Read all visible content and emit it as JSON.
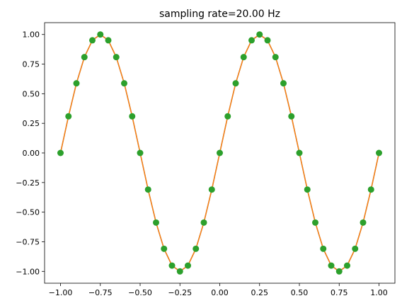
{
  "chart_data": {
    "type": "line",
    "title": "sampling rate=20.00 Hz",
    "xlabel": "",
    "ylabel": "",
    "xlim": [
      -1.1,
      1.1
    ],
    "ylim": [
      -1.1,
      1.1
    ],
    "x_ticks": [
      -1.0,
      -0.75,
      -0.5,
      -0.25,
      0.0,
      0.25,
      0.5,
      0.75,
      1.0
    ],
    "x_tick_labels": [
      "−1.00",
      "−0.75",
      "−0.50",
      "−0.25",
      "0.00",
      "0.25",
      "0.50",
      "0.75",
      "1.00"
    ],
    "y_ticks": [
      -1.0,
      -0.75,
      -0.5,
      -0.25,
      0.0,
      0.25,
      0.5,
      0.75,
      1.0
    ],
    "y_tick_labels": [
      "−1.00",
      "−0.75",
      "−0.50",
      "−0.25",
      "0.00",
      "0.25",
      "0.50",
      "0.75",
      "1.00"
    ],
    "grid": false,
    "series": [
      {
        "style": "line",
        "color": "#1f77b4",
        "x": [
          -1.0,
          -0.95,
          -0.9,
          -0.85,
          -0.8,
          -0.75,
          -0.7,
          -0.65,
          -0.6,
          -0.55,
          -0.5,
          -0.45,
          -0.4,
          -0.35,
          -0.3,
          -0.25,
          -0.2,
          -0.15,
          -0.1,
          -0.05,
          0.0,
          0.05,
          0.1,
          0.15,
          0.2,
          0.25,
          0.3,
          0.35,
          0.4,
          0.45,
          0.5,
          0.55,
          0.6,
          0.65,
          0.7,
          0.75,
          0.8,
          0.85,
          0.9,
          0.95,
          1.0
        ],
        "y": [
          0.0,
          0.309,
          0.588,
          0.809,
          0.951,
          1.0,
          0.951,
          0.809,
          0.588,
          0.309,
          0.0,
          -0.309,
          -0.588,
          -0.809,
          -0.951,
          -1.0,
          -0.951,
          -0.809,
          -0.588,
          -0.309,
          0.0,
          0.309,
          0.588,
          0.809,
          0.951,
          1.0,
          0.951,
          0.809,
          0.588,
          0.309,
          0.0,
          -0.309,
          -0.588,
          -0.809,
          -0.951,
          -1.0,
          -0.951,
          -0.809,
          -0.588,
          -0.309,
          0.0
        ]
      },
      {
        "style": "line",
        "color": "#ff7f0e",
        "x": [
          -1.0,
          -0.95,
          -0.9,
          -0.85,
          -0.8,
          -0.75,
          -0.7,
          -0.65,
          -0.6,
          -0.55,
          -0.5,
          -0.45,
          -0.4,
          -0.35,
          -0.3,
          -0.25,
          -0.2,
          -0.15,
          -0.1,
          -0.05,
          0.0,
          0.05,
          0.1,
          0.15,
          0.2,
          0.25,
          0.3,
          0.35,
          0.4,
          0.45,
          0.5,
          0.55,
          0.6,
          0.65,
          0.7,
          0.75,
          0.8,
          0.85,
          0.9,
          0.95,
          1.0
        ],
        "y": [
          0.0,
          0.309,
          0.588,
          0.809,
          0.951,
          1.0,
          0.951,
          0.809,
          0.588,
          0.309,
          0.0,
          -0.309,
          -0.588,
          -0.809,
          -0.951,
          -1.0,
          -0.951,
          -0.809,
          -0.588,
          -0.309,
          0.0,
          0.309,
          0.588,
          0.809,
          0.951,
          1.0,
          0.951,
          0.809,
          0.588,
          0.309,
          0.0,
          -0.309,
          -0.588,
          -0.809,
          -0.951,
          -1.0,
          -0.951,
          -0.809,
          -0.588,
          -0.309,
          0.0
        ]
      },
      {
        "style": "markers",
        "color": "#2ca02c",
        "x": [
          -1.0,
          -0.95,
          -0.9,
          -0.85,
          -0.8,
          -0.75,
          -0.7,
          -0.65,
          -0.6,
          -0.55,
          -0.5,
          -0.45,
          -0.4,
          -0.35,
          -0.3,
          -0.25,
          -0.2,
          -0.15,
          -0.1,
          -0.05,
          0.0,
          0.05,
          0.1,
          0.15,
          0.2,
          0.25,
          0.3,
          0.35,
          0.4,
          0.45,
          0.5,
          0.55,
          0.6,
          0.65,
          0.7,
          0.75,
          0.8,
          0.85,
          0.9,
          0.95,
          1.0
        ],
        "y": [
          0.0,
          0.309,
          0.588,
          0.809,
          0.951,
          1.0,
          0.951,
          0.809,
          0.588,
          0.309,
          0.0,
          -0.309,
          -0.588,
          -0.809,
          -0.951,
          -1.0,
          -0.951,
          -0.809,
          -0.588,
          -0.309,
          0.0,
          0.309,
          0.588,
          0.809,
          0.951,
          1.0,
          0.951,
          0.809,
          0.588,
          0.309,
          0.0,
          -0.309,
          -0.588,
          -0.809,
          -0.951,
          -1.0,
          -0.951,
          -0.809,
          -0.588,
          -0.309,
          0.0
        ]
      }
    ]
  }
}
